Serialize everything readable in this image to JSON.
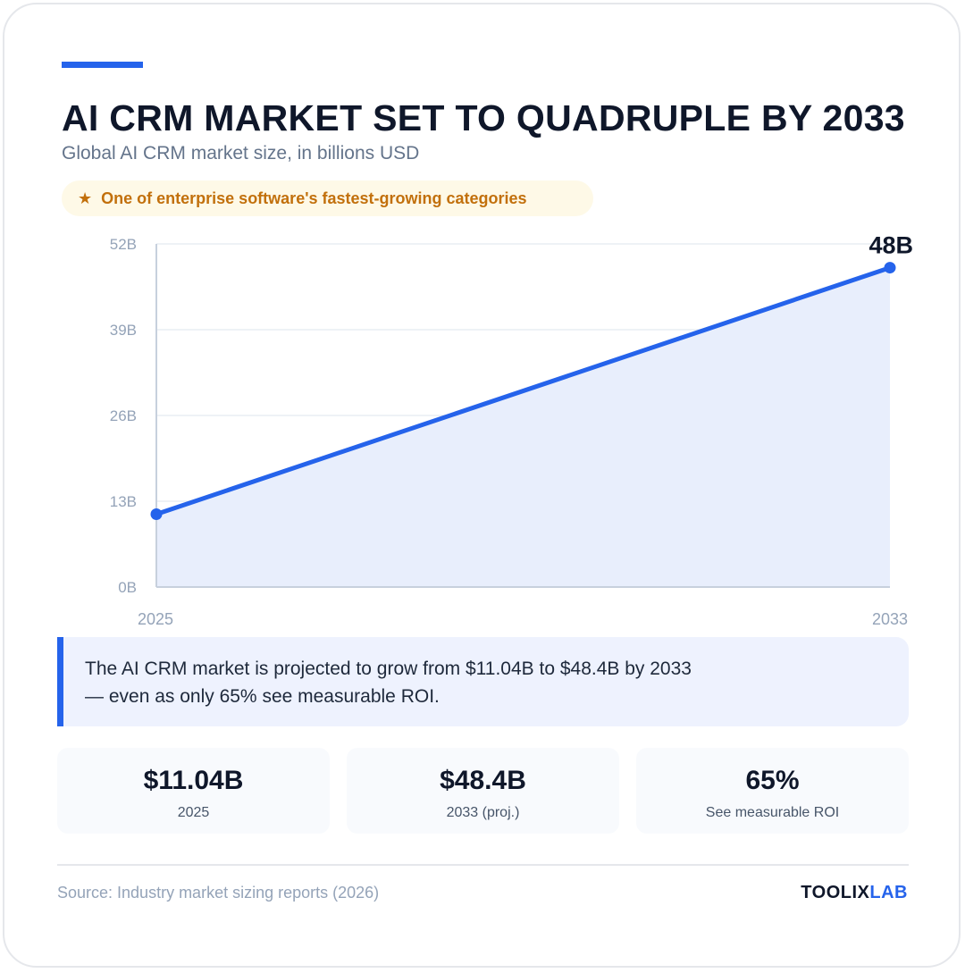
{
  "header": {
    "title": "AI CRM MARKET SET TO QUADRUPLE BY 2033",
    "subtitle": "Global AI CRM market size, in billions USD",
    "badge_text": "One of enterprise software's fastest-growing categories",
    "badge_icon": "star-icon"
  },
  "chart_data": {
    "type": "area",
    "x": [
      "2025",
      "2033"
    ],
    "series": [
      {
        "values": [
          11.04,
          48.4
        ]
      }
    ],
    "ylim": [
      0,
      52
    ],
    "yticks": [
      0,
      13,
      26,
      39,
      52
    ],
    "ytick_labels": [
      "0B",
      "13B",
      "26B",
      "39B",
      "52B"
    ],
    "end_label": "48B",
    "grid": true,
    "colors": {
      "line": "#2563eb",
      "fill": "#e8eefc",
      "grid": "#e9edf3",
      "axis": "#c7d0dd"
    }
  },
  "callout": {
    "text": "The AI CRM market is projected to grow from $11.04B to $48.4B by 2033 — even as only 65% see measurable ROI."
  },
  "stats": [
    {
      "value": "$11.04B",
      "label": "2025"
    },
    {
      "value": "$48.4B",
      "label": "2033 (proj.)"
    },
    {
      "value": "65%",
      "label": "See measurable ROI"
    }
  ],
  "footer": {
    "source": "Source: Industry market sizing reports (2026)",
    "brand_part1": "TOOLIX",
    "brand_part2": "LAB"
  },
  "colors": {
    "accent": "#2563eb",
    "badge_text": "#c2700c"
  }
}
